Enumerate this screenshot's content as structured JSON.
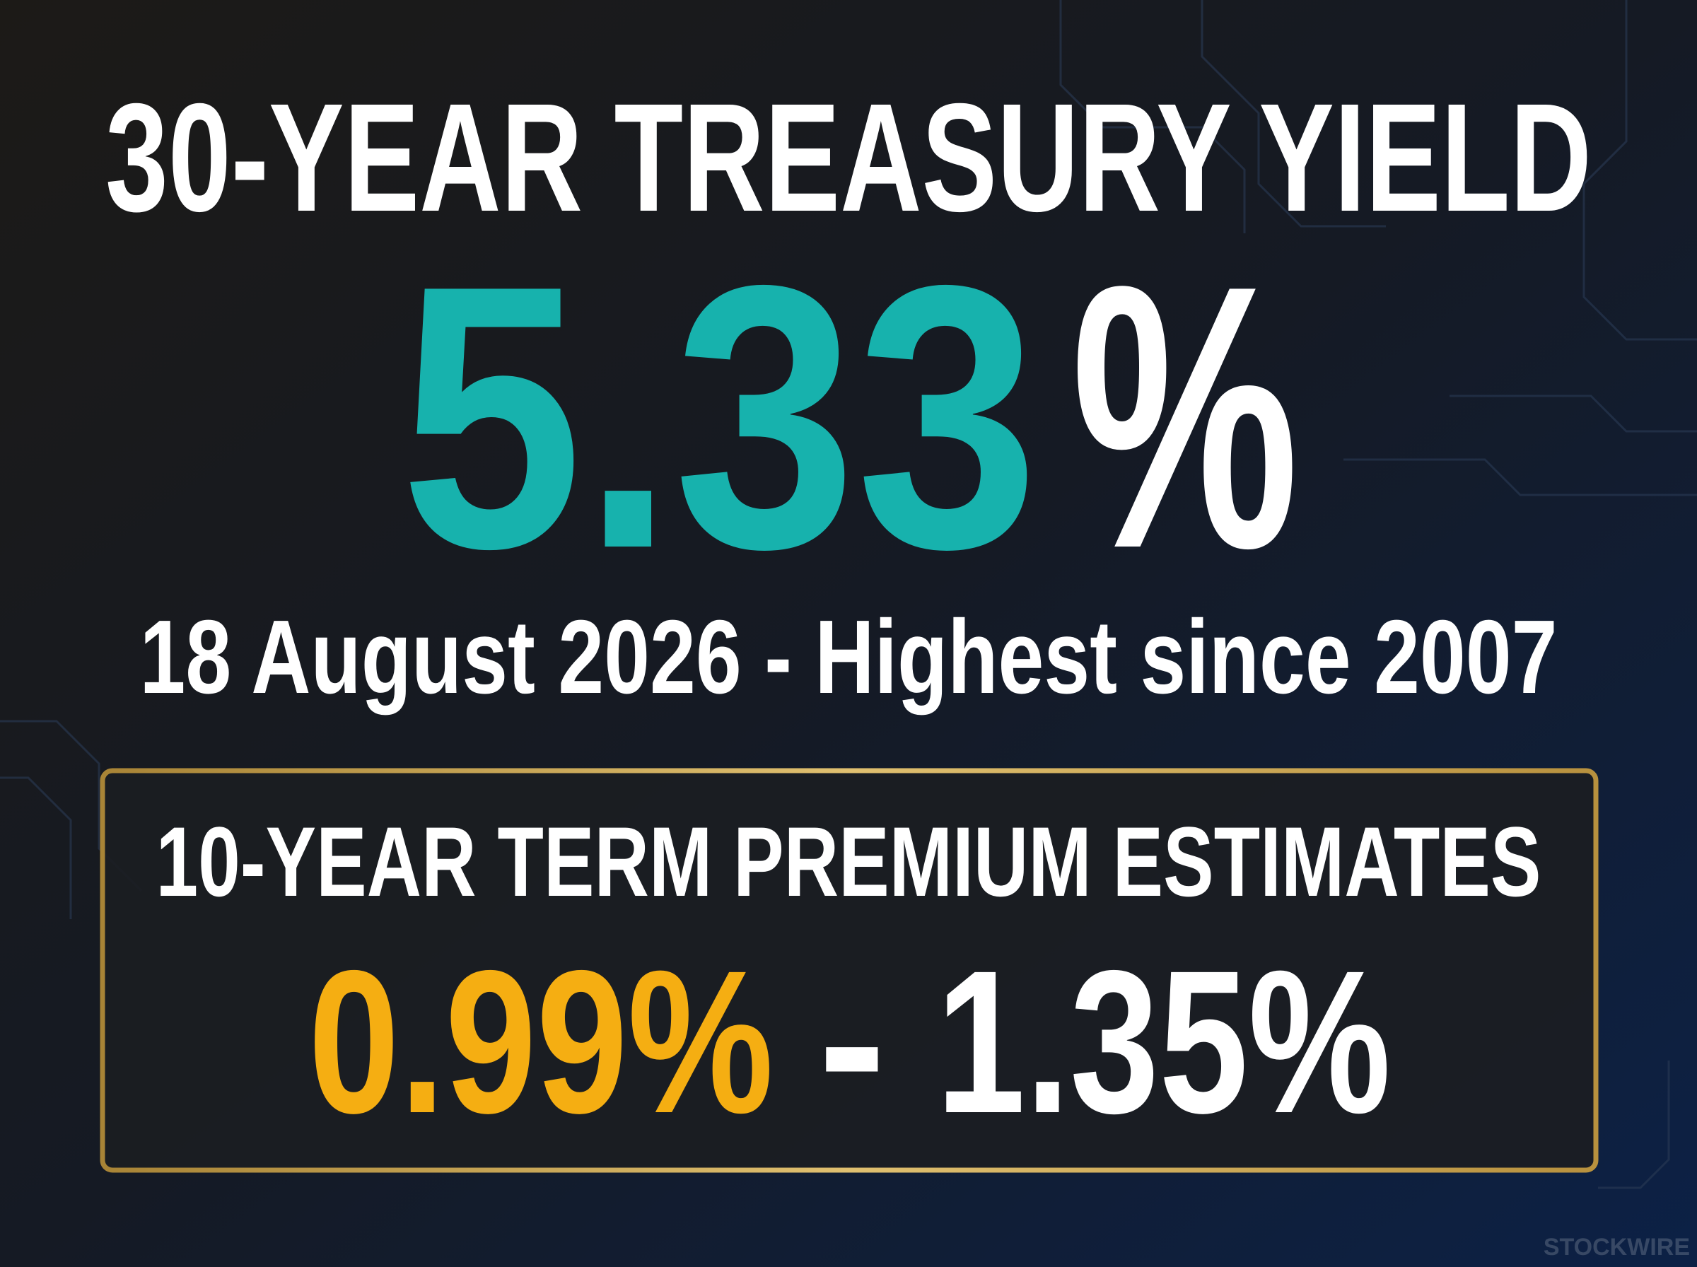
{
  "header": {
    "title": "30-YEAR TREASURY YIELD"
  },
  "headline": {
    "number": "5.33",
    "unit": "%",
    "subtitle": "18 August 2026 - Highest since 2007"
  },
  "panel": {
    "title": "10-YEAR TERM PREMIUM ESTIMATES",
    "low": "0.99%",
    "separator": "-",
    "high": "1.35%"
  },
  "footer": {
    "watermark": "STOCKWIRE"
  }
}
